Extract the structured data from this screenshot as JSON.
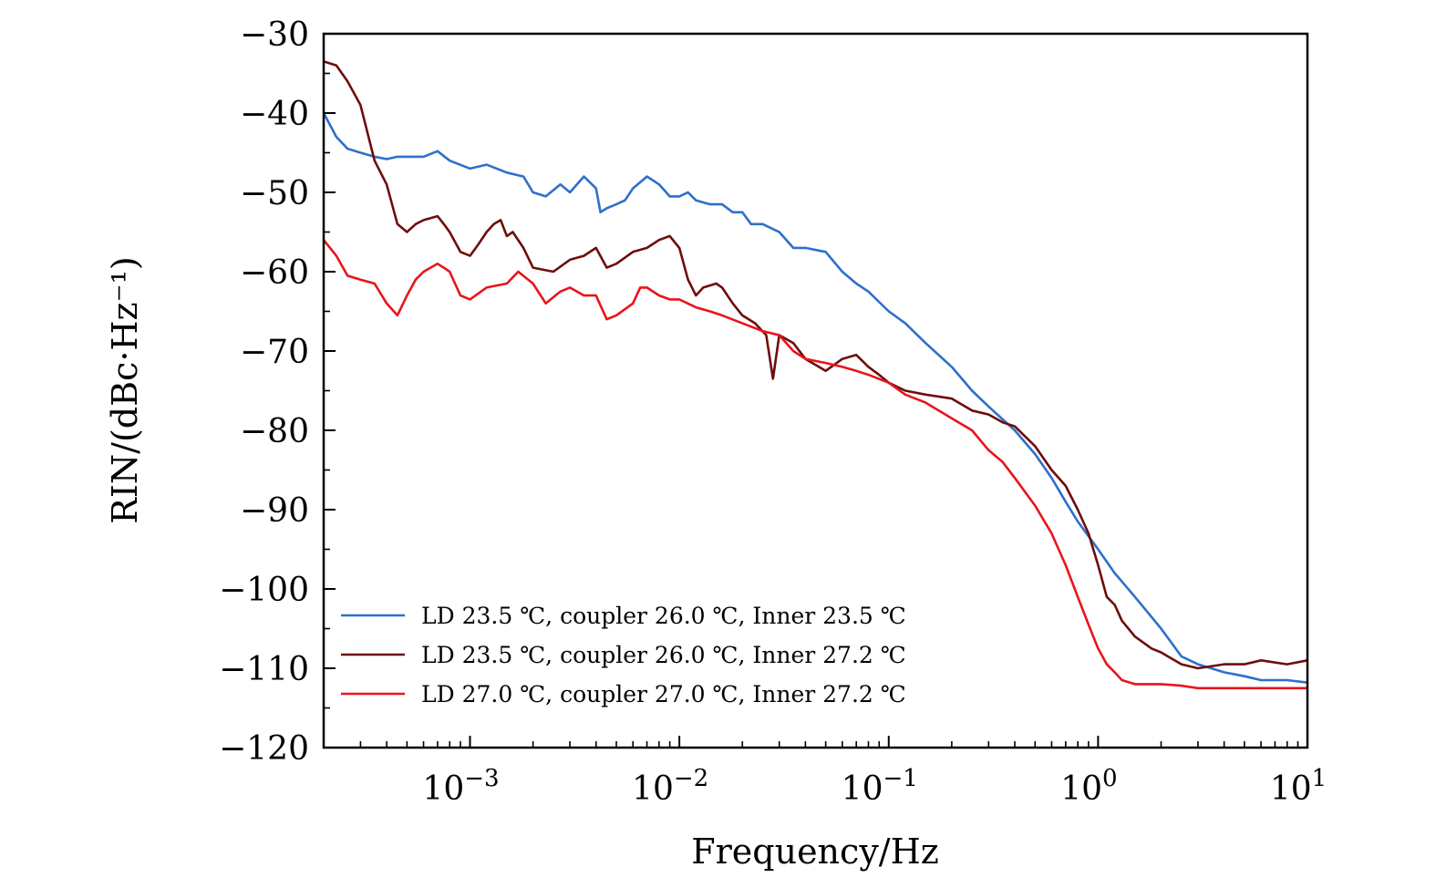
{
  "chart_data": {
    "type": "line",
    "title": "",
    "xlabel": "Frequency/Hz",
    "ylabel": "RIN/(dBc·Hz⁻¹)",
    "xscale": "log",
    "xlim": [
      0.0002,
      10
    ],
    "ylim": [
      -120,
      -30
    ],
    "x_ticks": [
      {
        "value": 0.001,
        "base": "10",
        "exp": "−3"
      },
      {
        "value": 0.01,
        "base": "10",
        "exp": "−2"
      },
      {
        "value": 0.1,
        "base": "10",
        "exp": "−1"
      },
      {
        "value": 1,
        "base": "10",
        "exp": "0"
      },
      {
        "value": 10,
        "base": "10",
        "exp": "1"
      }
    ],
    "y_ticks": [
      {
        "value": -30,
        "label": "−30"
      },
      {
        "value": -40,
        "label": "−40"
      },
      {
        "value": -50,
        "label": "−50"
      },
      {
        "value": -60,
        "label": "−60"
      },
      {
        "value": -70,
        "label": "−70"
      },
      {
        "value": -80,
        "label": "−80"
      },
      {
        "value": -90,
        "label": "−90"
      },
      {
        "value": -100,
        "label": "−100"
      },
      {
        "value": -110,
        "label": "−110"
      },
      {
        "value": -120,
        "label": "−120"
      }
    ],
    "legend_position": "bottom-left",
    "series": [
      {
        "name": "LD 23.5 ℃, coupler 26.0 ℃, Inner 23.5 ℃",
        "color": "#2e6fcc",
        "x": [
          0.0002,
          0.00023,
          0.00026,
          0.0003,
          0.00035,
          0.0004,
          0.00045,
          0.0005,
          0.0006,
          0.0007,
          0.0008,
          0.001,
          0.0012,
          0.0015,
          0.0018,
          0.002,
          0.0023,
          0.0027,
          0.003,
          0.0035,
          0.004,
          0.0042,
          0.0045,
          0.005,
          0.0055,
          0.006,
          0.007,
          0.0075,
          0.008,
          0.009,
          0.01,
          0.011,
          0.012,
          0.014,
          0.016,
          0.018,
          0.02,
          0.022,
          0.025,
          0.03,
          0.035,
          0.04,
          0.05,
          0.06,
          0.07,
          0.08,
          0.1,
          0.12,
          0.15,
          0.2,
          0.25,
          0.3,
          0.4,
          0.5,
          0.6,
          0.7,
          0.8,
          1.0,
          1.2,
          1.5,
          2.0,
          2.5,
          3.0,
          4.0,
          5.0,
          6.0,
          8.0,
          10.0
        ],
        "y": [
          -40,
          -43,
          -44.5,
          -45,
          -45.5,
          -45.8,
          -45.5,
          -45.5,
          -45.5,
          -44.8,
          -46,
          -47,
          -46.5,
          -47.5,
          -48,
          -50,
          -50.5,
          -49,
          -50,
          -48,
          -49.5,
          -52.5,
          -52,
          -51.5,
          -51,
          -49.5,
          -48,
          -48.5,
          -49,
          -50.5,
          -50.5,
          -50,
          -51,
          -51.5,
          -51.5,
          -52.5,
          -52.5,
          -54,
          -54,
          -55,
          -57,
          -57,
          -57.5,
          -60,
          -61.5,
          -62.5,
          -65,
          -66.5,
          -69,
          -72,
          -75,
          -77,
          -80,
          -83,
          -86,
          -89,
          -91.5,
          -95,
          -98,
          -101,
          -105,
          -108.5,
          -109.5,
          -110.5,
          -111,
          -111.5,
          -111.5,
          -111.8
        ]
      },
      {
        "name": "LD 23.5 ℃, coupler 26.0 ℃, Inner 27.2 ℃",
        "color": "#6e0d0d",
        "x": [
          0.0002,
          0.00023,
          0.00026,
          0.0003,
          0.00035,
          0.0004,
          0.00045,
          0.0005,
          0.00055,
          0.0006,
          0.0007,
          0.00075,
          0.0008,
          0.0009,
          0.001,
          0.0011,
          0.0012,
          0.0013,
          0.0014,
          0.0015,
          0.0016,
          0.0018,
          0.002,
          0.0025,
          0.003,
          0.0035,
          0.004,
          0.0045,
          0.005,
          0.006,
          0.007,
          0.008,
          0.009,
          0.01,
          0.011,
          0.012,
          0.013,
          0.015,
          0.016,
          0.018,
          0.02,
          0.023,
          0.026,
          0.028,
          0.03,
          0.035,
          0.04,
          0.05,
          0.06,
          0.07,
          0.08,
          0.09,
          0.1,
          0.12,
          0.15,
          0.2,
          0.25,
          0.3,
          0.35,
          0.4,
          0.5,
          0.6,
          0.7,
          0.8,
          0.9,
          1.0,
          1.1,
          1.2,
          1.3,
          1.5,
          1.8,
          2.0,
          2.5,
          3.0,
          4.0,
          5.0,
          6.0,
          8.0,
          10.0
        ],
        "y": [
          -33.5,
          -34,
          -36,
          -39,
          -46,
          -49,
          -54,
          -55,
          -54,
          -53.5,
          -53,
          -54,
          -55,
          -57.5,
          -58,
          -56.5,
          -55,
          -54,
          -53.5,
          -55.5,
          -55,
          -57,
          -59.5,
          -60,
          -58.5,
          -58,
          -57,
          -59.5,
          -59,
          -57.5,
          -57,
          -56,
          -55.5,
          -57,
          -61,
          -63,
          -62,
          -61.5,
          -62,
          -64,
          -65.5,
          -66.5,
          -68,
          -73.5,
          -68,
          -69,
          -71,
          -72.5,
          -71,
          -70.5,
          -72,
          -73,
          -74,
          -75,
          -75.5,
          -76,
          -77.5,
          -78,
          -79,
          -79.5,
          -82,
          -85,
          -87,
          -90,
          -93,
          -97,
          -101,
          -102,
          -104,
          -106,
          -107.5,
          -108,
          -109.5,
          -110,
          -109.5,
          -109.5,
          -109,
          -109.5,
          -109
        ]
      },
      {
        "name": "LD 27.0 ℃, coupler 27.0 ℃, Inner 27.2 ℃",
        "color": "#e8141c",
        "x": [
          0.0002,
          0.00023,
          0.00026,
          0.0003,
          0.00035,
          0.0004,
          0.00045,
          0.0005,
          0.00055,
          0.0006,
          0.0007,
          0.00075,
          0.0008,
          0.0009,
          0.001,
          0.0012,
          0.0015,
          0.0017,
          0.002,
          0.0023,
          0.0027,
          0.003,
          0.0035,
          0.004,
          0.0045,
          0.005,
          0.006,
          0.0065,
          0.007,
          0.008,
          0.009,
          0.01,
          0.012,
          0.014,
          0.016,
          0.02,
          0.025,
          0.03,
          0.035,
          0.04,
          0.05,
          0.06,
          0.07,
          0.08,
          0.1,
          0.12,
          0.15,
          0.2,
          0.25,
          0.3,
          0.35,
          0.4,
          0.5,
          0.6,
          0.7,
          0.8,
          0.9,
          1.0,
          1.1,
          1.2,
          1.3,
          1.5,
          2.0,
          2.5,
          3.0,
          4.0,
          5.0,
          6.0,
          8.0,
          10.0
        ],
        "y": [
          -56,
          -58,
          -60.5,
          -61,
          -61.5,
          -64,
          -65.5,
          -63,
          -61,
          -60,
          -59,
          -59.5,
          -60,
          -63,
          -63.5,
          -62,
          -61.5,
          -60,
          -61.5,
          -64,
          -62.5,
          -62,
          -63,
          -63,
          -66,
          -65.5,
          -64,
          -62,
          -62,
          -63,
          -63.5,
          -63.5,
          -64.5,
          -65,
          -65.5,
          -66.5,
          -67.5,
          -68,
          -70,
          -71,
          -71.5,
          -72,
          -72.5,
          -73,
          -74,
          -75.5,
          -76.5,
          -78.5,
          -80,
          -82.5,
          -84,
          -86,
          -89.5,
          -93,
          -97,
          -101,
          -104.5,
          -107.5,
          -109.5,
          -110.5,
          -111.5,
          -112,
          -112,
          -112.2,
          -112.5,
          -112.5,
          -112.5,
          -112.5,
          -112.5,
          -112.5
        ]
      }
    ]
  }
}
